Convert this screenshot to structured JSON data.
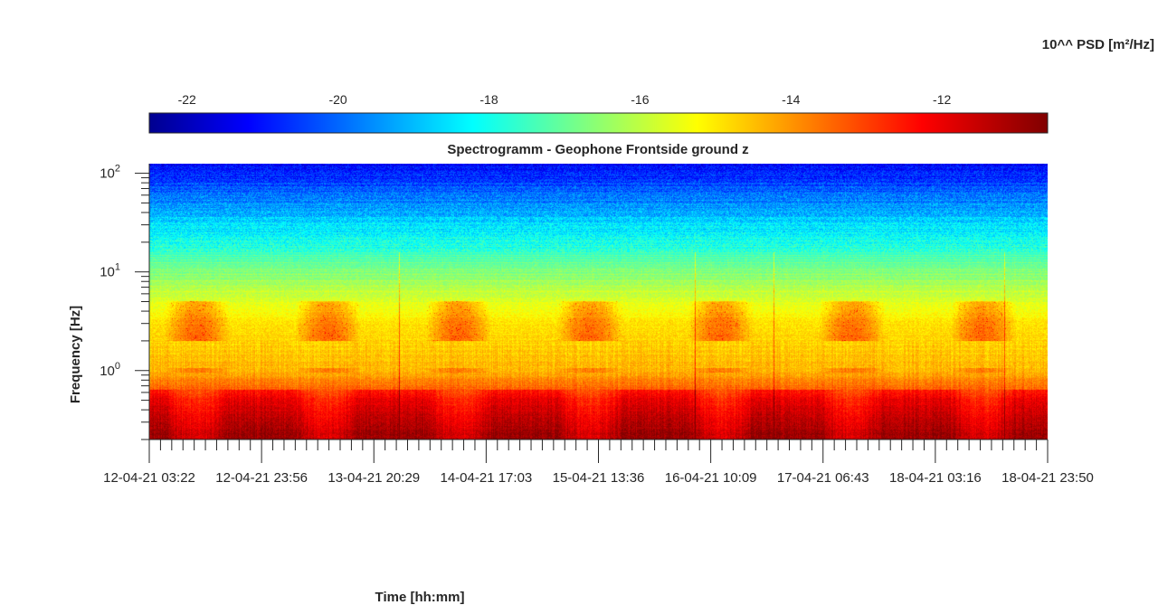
{
  "chart_data": {
    "type": "heatmap",
    "title": "Spectrogramm - Geophone Frontside ground z",
    "xlabel": "Time [hh:mm]",
    "ylabel": "Frequency [Hz]",
    "y_scale": "log",
    "ylim": [
      0.2,
      125
    ],
    "y_ticks": [
      {
        "value": 1,
        "label": "10^0"
      },
      {
        "value": 10,
        "label": "10^1"
      },
      {
        "value": 100,
        "label": "10^2"
      }
    ],
    "x_range": [
      "12-04-21 03:22",
      "18-04-21 23:50"
    ],
    "x_ticks": [
      "12-04-21 03:22",
      "12-04-21 23:56",
      "13-04-21 20:29",
      "14-04-21 17:03",
      "15-04-21 13:36",
      "16-04-21 10:09",
      "17-04-21 06:43",
      "18-04-21 03:16",
      "18-04-21 23:50"
    ],
    "colorbar": {
      "label": "10^^ PSD [m²/Hz]",
      "range": [
        -22.5,
        -10.6
      ],
      "ticks": [
        -22,
        -20,
        -18,
        -16,
        -14,
        -12
      ],
      "colormap": "jet",
      "placement": "top"
    },
    "grid": false,
    "description_levels": {
      "frequency_log10_profile": [
        [
          -0.7,
          -11.6
        ],
        [
          -0.3,
          -12.6
        ],
        [
          0.0,
          -14.2
        ],
        [
          0.5,
          -14.8
        ],
        [
          1.0,
          -16.5
        ],
        [
          1.5,
          -18.5
        ],
        [
          2.1,
          -21.0
        ]
      ],
      "daytime_bands_hz": [
        2,
        5
      ]
    }
  }
}
